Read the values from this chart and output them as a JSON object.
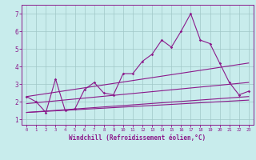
{
  "xlabel": "Windchill (Refroidissement éolien,°C)",
  "background_color": "#c8ecec",
  "grid_color": "#a0c8c8",
  "line_color": "#8b1a8b",
  "xlim": [
    -0.5,
    23.5
  ],
  "ylim": [
    0.7,
    7.5
  ],
  "xticks": [
    0,
    1,
    2,
    3,
    4,
    5,
    6,
    7,
    8,
    9,
    10,
    11,
    12,
    13,
    14,
    15,
    16,
    17,
    18,
    19,
    20,
    21,
    22,
    23
  ],
  "yticks": [
    1,
    2,
    3,
    4,
    5,
    6,
    7
  ],
  "zigzag_x": [
    0,
    1,
    2,
    3,
    4,
    5,
    6,
    7,
    8,
    9,
    10,
    11,
    12,
    13,
    14,
    15,
    16,
    17,
    18,
    19,
    20,
    21,
    22,
    23
  ],
  "zigzag_y": [
    2.3,
    2.0,
    1.4,
    3.3,
    1.5,
    1.6,
    2.7,
    3.1,
    2.5,
    2.4,
    3.6,
    3.6,
    4.3,
    4.7,
    5.5,
    5.1,
    6.0,
    7.0,
    5.5,
    5.3,
    4.2,
    3.1,
    2.4,
    2.6
  ],
  "straight_lines": [
    {
      "x0": 0,
      "y0": 2.3,
      "x1": 23,
      "y1": 4.2
    },
    {
      "x0": 0,
      "y0": 1.9,
      "x1": 23,
      "y1": 3.1
    },
    {
      "x0": 0,
      "y0": 1.4,
      "x1": 23,
      "y1": 2.3
    },
    {
      "x0": 0,
      "y0": 1.4,
      "x1": 23,
      "y1": 2.1
    }
  ]
}
